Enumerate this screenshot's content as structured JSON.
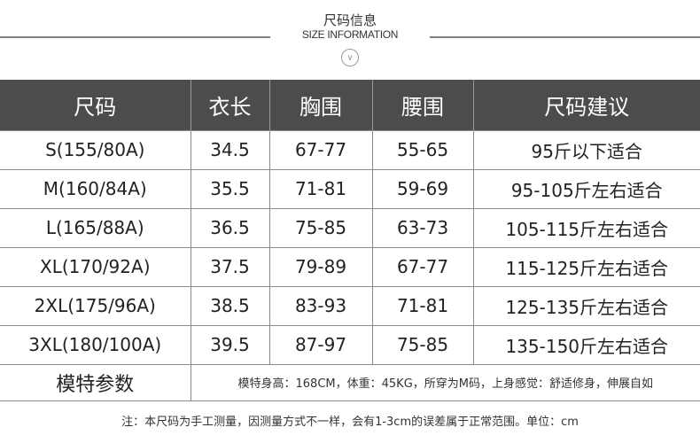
{
  "header": {
    "title_cn": "尺码信息",
    "title_en": "SIZE INFORMATION",
    "icon": "chevron-down-circle-icon"
  },
  "table": {
    "columns": [
      "尺码",
      "衣长",
      "胸围",
      "腰围",
      "尺码建议"
    ],
    "rows": [
      [
        "S(155/80A)",
        "34.5",
        "67-77",
        "55-65",
        "95斤以下适合"
      ],
      [
        "M(160/84A)",
        "35.5",
        "71-81",
        "59-69",
        "95-105斤左右适合"
      ],
      [
        "L(165/88A)",
        "36.5",
        "75-85",
        "63-73",
        "105-115斤左右适合"
      ],
      [
        "XL(170/92A)",
        "37.5",
        "79-89",
        "67-77",
        "115-125斤左右适合"
      ],
      [
        "2XL(175/96A)",
        "38.5",
        "83-93",
        "71-81",
        "125-135斤左右适合"
      ],
      [
        "3XL(180/100A)",
        "39.5",
        "87-97",
        "75-85",
        "135-150斤左右适合"
      ]
    ],
    "model": {
      "label": "模特参数",
      "text": "模特身高：168CM，体重：45KG，所穿为M码，上身感觉：舒适修身，伸展自如"
    }
  },
  "note": "注：本尺码为手工测量，因测量方式不一样，会有1-3cm的误差属于正常范围。单位：cm",
  "colors": {
    "header_bg": "#4d4b4c",
    "rule": "#808080"
  }
}
